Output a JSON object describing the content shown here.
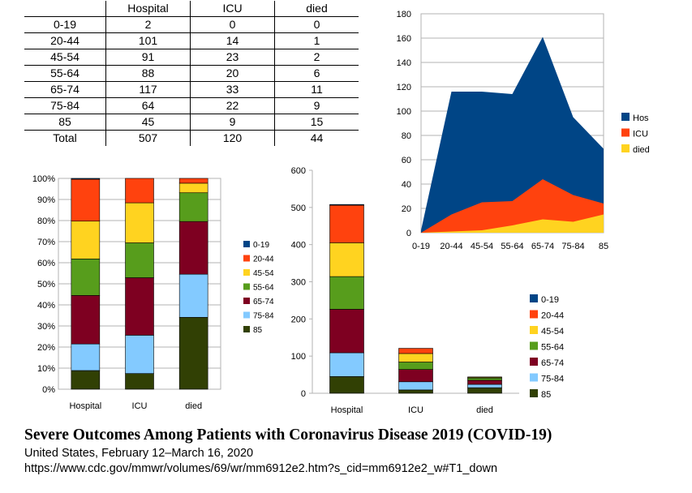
{
  "colors": {
    "0-19": "#004586",
    "20-44": "#ff420e",
    "45-54": "#ffd320",
    "55-64": "#579d1c",
    "65-74": "#7e0021",
    "75-84": "#83caff",
    "85": "#314004",
    "Hospital": "#004586",
    "ICU": "#ff420e",
    "died": "#ffd320"
  },
  "table": {
    "headers": [
      "",
      "Hospital",
      "ICU",
      "died"
    ],
    "rows": [
      [
        "0-19",
        "2",
        "0",
        "0"
      ],
      [
        "20-44",
        "101",
        "14",
        "1"
      ],
      [
        "45-54",
        "91",
        "23",
        "2"
      ],
      [
        "55-64",
        "88",
        "20",
        "6"
      ],
      [
        "65-74",
        "117",
        "33",
        "11"
      ],
      [
        "75-84",
        "64",
        "22",
        "9"
      ],
      [
        "85",
        "45",
        "9",
        "15"
      ],
      [
        "Total",
        "507",
        "120",
        "44"
      ]
    ]
  },
  "footer": {
    "title": "Severe Outcomes Among Patients with Coronavirus Disease 2019 (COVID-19)",
    "subtitle": "United States, February 12–March 16, 2020",
    "source": "https://www.cdc.gov/mmwr/volumes/69/wr/mm6912e2.htm?s_cid=mm6912e2_w#T1_down"
  },
  "chart_data": [
    {
      "type": "bar",
      "stacked": "percent",
      "categories": [
        "Hospital",
        "ICU",
        "died"
      ],
      "series": [
        {
          "name": "0-19",
          "values": [
            2,
            0,
            0
          ]
        },
        {
          "name": "20-44",
          "values": [
            101,
            14,
            1
          ]
        },
        {
          "name": "45-54",
          "values": [
            91,
            23,
            2
          ]
        },
        {
          "name": "55-64",
          "values": [
            88,
            20,
            6
          ]
        },
        {
          "name": "65-74",
          "values": [
            117,
            33,
            11
          ]
        },
        {
          "name": "75-84",
          "values": [
            64,
            22,
            9
          ]
        },
        {
          "name": "85",
          "values": [
            45,
            9,
            15
          ]
        }
      ],
      "y_ticks": [
        "0%",
        "10%",
        "20%",
        "30%",
        "40%",
        "50%",
        "60%",
        "70%",
        "80%",
        "90%",
        "100%"
      ],
      "ylim": [
        0,
        100
      ],
      "grid": true,
      "legend": "right"
    },
    {
      "type": "bar",
      "stacked": "absolute",
      "categories": [
        "Hospital",
        "ICU",
        "died"
      ],
      "series": [
        {
          "name": "0-19",
          "values": [
            2,
            0,
            0
          ]
        },
        {
          "name": "20-44",
          "values": [
            101,
            14,
            1
          ]
        },
        {
          "name": "45-54",
          "values": [
            91,
            23,
            2
          ]
        },
        {
          "name": "55-64",
          "values": [
            88,
            20,
            6
          ]
        },
        {
          "name": "65-74",
          "values": [
            117,
            33,
            11
          ]
        },
        {
          "name": "75-84",
          "values": [
            64,
            22,
            9
          ]
        },
        {
          "name": "85",
          "values": [
            45,
            9,
            15
          ]
        }
      ],
      "y_ticks": [
        "0",
        "100",
        "200",
        "300",
        "400",
        "500",
        "600"
      ],
      "ylim": [
        0,
        600
      ],
      "grid": false,
      "legend": "right"
    },
    {
      "type": "area",
      "stacked": false,
      "categories": [
        "0-19",
        "20-44",
        "45-54",
        "55-64",
        "65-74",
        "75-84",
        "85"
      ],
      "series": [
        {
          "name": "Hospital",
          "values": [
            2,
            116,
            116,
            114,
            161,
            95,
            69
          ]
        },
        {
          "name": "ICU",
          "values": [
            0,
            15,
            25,
            26,
            44,
            31,
            24
          ]
        },
        {
          "name": "died",
          "values": [
            0,
            1,
            2,
            6,
            11,
            9,
            15
          ]
        }
      ],
      "y_ticks": [
        "0",
        "20",
        "40",
        "60",
        "80",
        "100",
        "120",
        "140",
        "160",
        "180"
      ],
      "ylim": [
        0,
        180
      ],
      "grid": true,
      "legend": "right"
    }
  ]
}
